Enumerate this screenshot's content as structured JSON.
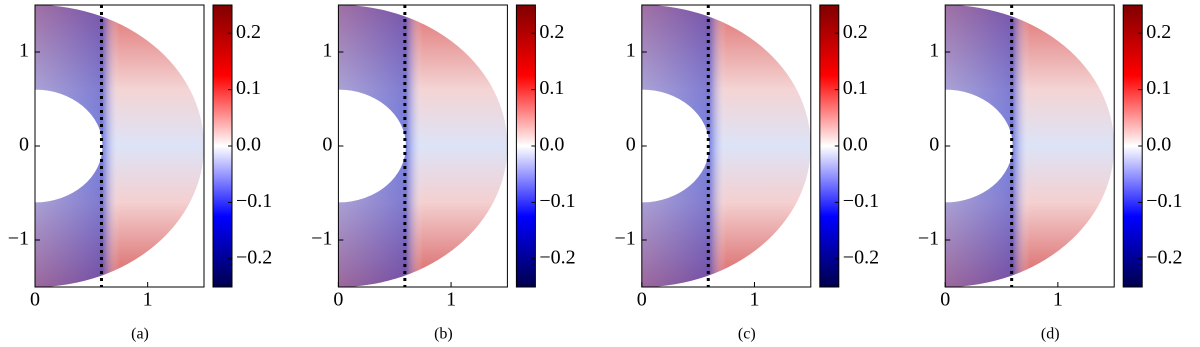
{
  "chart_data": [
    {
      "type": "field",
      "caption": "(a)",
      "xlim": [
        0,
        1.5
      ],
      "ylim": [
        -1.5,
        1.5
      ],
      "xticks": [
        0,
        1
      ],
      "yticks": [
        {
          "value": -1,
          "label": "−1"
        },
        0,
        1
      ],
      "reference_line_x": 0.59,
      "clim": [
        -0.25,
        0.25
      ],
      "cticks": [
        {
          "value": -0.2,
          "label": "−0.2"
        },
        {
          "value": -0.1,
          "label": "−0.1"
        },
        {
          "value": 0,
          "label": "0.0"
        },
        0.1,
        0.2
      ]
    },
    {
      "type": "field",
      "caption": "(b)",
      "xlim": [
        0,
        1.5
      ],
      "ylim": [
        -1.5,
        1.5
      ],
      "xticks": [
        0,
        1
      ],
      "yticks": [
        {
          "value": -1,
          "label": "−1"
        },
        0,
        1
      ],
      "reference_line_x": 0.59,
      "clim": [
        -0.25,
        0.25
      ],
      "cticks": [
        {
          "value": -0.2,
          "label": "−0.2"
        },
        {
          "value": -0.1,
          "label": "−0.1"
        },
        {
          "value": 0,
          "label": "0.0"
        },
        0.1,
        0.2
      ]
    },
    {
      "type": "field",
      "caption": "(c)",
      "xlim": [
        0,
        1.5
      ],
      "ylim": [
        -1.5,
        1.5
      ],
      "xticks": [
        0,
        1
      ],
      "yticks": [
        {
          "value": -1,
          "label": "−1"
        },
        0,
        1
      ],
      "reference_line_x": 0.59,
      "clim": [
        -0.25,
        0.25
      ],
      "cticks": [
        {
          "value": -0.2,
          "label": "−0.2"
        },
        {
          "value": -0.1,
          "label": "−0.1"
        },
        {
          "value": 0,
          "label": "0.0"
        },
        0.1,
        0.2
      ]
    },
    {
      "type": "field",
      "caption": "(d)",
      "xlim": [
        0,
        1.5
      ],
      "ylim": [
        -1.5,
        1.5
      ],
      "xticks": [
        0,
        1
      ],
      "yticks": [
        {
          "value": -1,
          "label": "−1"
        },
        0,
        1
      ],
      "reference_line_x": 0.59,
      "clim": [
        -0.25,
        0.25
      ],
      "cticks": [
        {
          "value": -0.2,
          "label": "−0.2"
        },
        {
          "value": -0.1,
          "label": "−0.1"
        },
        {
          "value": 0,
          "label": "0.0"
        },
        0.1,
        0.2
      ]
    }
  ]
}
